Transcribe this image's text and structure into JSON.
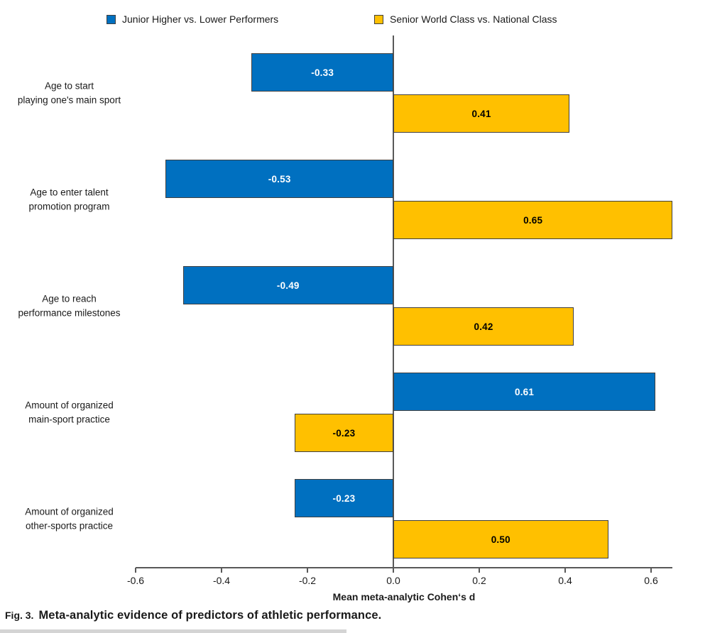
{
  "legend": {
    "items": [
      {
        "label": "Junior Higher vs. Lower Performers",
        "color": "#0070C0"
      },
      {
        "label": "Senior World Class vs. National Class",
        "color": "#FFC000"
      }
    ]
  },
  "chart_data": {
    "type": "bar",
    "orientation": "horizontal",
    "title": "",
    "xlabel": "Mean meta-analytic Cohen‘s d",
    "ylabel": "",
    "xlim": [
      -0.6,
      0.65
    ],
    "grid": false,
    "legend_position": "top",
    "categories": [
      "Age to start playing one's main sport",
      "Age to enter talent promotion program",
      "Age to reach performance milestones",
      "Amount of organized main-sport practice",
      "Amount of organized other-sports practice"
    ],
    "category_lines": [
      [
        "Age to start",
        "playing one's main sport"
      ],
      [
        "Age to enter talent",
        "promotion program"
      ],
      [
        "Age to reach",
        "performance milestones"
      ],
      [
        "Amount of organized",
        "main-sport practice"
      ],
      [
        "Amount of organized",
        "other-sports practice"
      ]
    ],
    "series": [
      {
        "name": "Junior Higher vs. Lower Performers",
        "color": "#0070C0",
        "label_color": "#ffffff",
        "values": [
          -0.33,
          -0.53,
          -0.49,
          0.61,
          -0.23
        ],
        "labels": [
          "-0.33",
          "-0.53",
          "-0.49",
          "0.61",
          "-0.23"
        ]
      },
      {
        "name": "Senior World Class vs. National Class",
        "color": "#FFC000",
        "label_color": "#000000",
        "values": [
          0.41,
          0.65,
          0.42,
          -0.23,
          0.5
        ],
        "labels": [
          "0.41",
          "0.65",
          "0.42",
          "-0.23",
          "0.50"
        ]
      }
    ],
    "xticks": [
      -0.6,
      -0.4,
      -0.2,
      0.0,
      0.2,
      0.4,
      0.6
    ],
    "xtick_labels": [
      "-0.6",
      "-0.4",
      "-0.2",
      "0.0",
      "0.2",
      "0.4",
      "0.6"
    ]
  },
  "caption": {
    "prefix": "Fig. 3.",
    "text": "Meta-analytic evidence of predictors of athletic performance."
  }
}
